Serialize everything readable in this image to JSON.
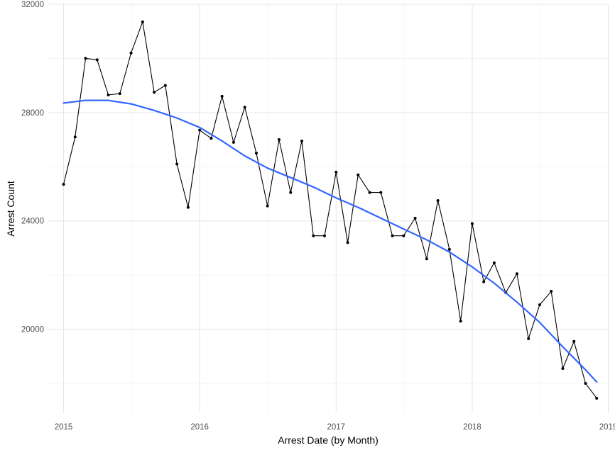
{
  "chart_data": {
    "type": "line",
    "xlabel": "Arrest Date (by Month)",
    "ylabel": "Arrest Count",
    "xlim": [
      "2014-11-21",
      "2018-12-31"
    ],
    "ylim": [
      16900,
      32000
    ],
    "x_ticks": [
      {
        "date": "2015-01-01",
        "label": "2015"
      },
      {
        "date": "2016-01-01",
        "label": "2016"
      },
      {
        "date": "2017-01-01",
        "label": "2017"
      },
      {
        "date": "2018-01-01",
        "label": "2018"
      },
      {
        "date": "2019-01-01",
        "label": "2019"
      }
    ],
    "y_ticks": [
      20000,
      24000,
      28000,
      32000
    ],
    "grid": true,
    "series": [
      {
        "kind": "observed",
        "color": "#000000",
        "x": [
          "2015-01",
          "2015-02",
          "2015-03",
          "2015-04",
          "2015-05",
          "2015-06",
          "2015-07",
          "2015-08",
          "2015-09",
          "2015-10",
          "2015-11",
          "2015-12",
          "2016-01",
          "2016-02",
          "2016-03",
          "2016-04",
          "2016-05",
          "2016-06",
          "2016-07",
          "2016-08",
          "2016-09",
          "2016-10",
          "2016-11",
          "2016-12",
          "2017-01",
          "2017-02",
          "2017-03",
          "2017-04",
          "2017-05",
          "2017-06",
          "2017-07",
          "2017-08",
          "2017-09",
          "2017-10",
          "2017-11",
          "2017-12",
          "2018-01",
          "2018-02",
          "2018-03",
          "2018-04",
          "2018-05",
          "2018-06",
          "2018-07",
          "2018-08",
          "2018-09",
          "2018-10",
          "2018-11",
          "2018-12"
        ],
        "values": [
          25350,
          27100,
          30000,
          29950,
          28650,
          28700,
          30200,
          31350,
          28750,
          29000,
          26100,
          24500,
          27350,
          27050,
          28600,
          26900,
          28200,
          26500,
          24550,
          27000,
          25050,
          26950,
          23450,
          23450,
          25800,
          23200,
          25700,
          25050,
          25050,
          23450,
          23450,
          24100,
          22600,
          24750,
          22950,
          20300,
          23900,
          21750,
          22450,
          21350,
          22050,
          19650,
          20900,
          21400,
          18550,
          19550,
          18000,
          17450
        ]
      },
      {
        "kind": "smooth",
        "color": "#3366ff",
        "x": [
          "2015-01",
          "2015-03",
          "2015-05",
          "2015-07",
          "2015-09",
          "2015-11",
          "2016-01",
          "2016-03",
          "2016-05",
          "2016-07",
          "2016-09",
          "2016-11",
          "2017-01",
          "2017-03",
          "2017-05",
          "2017-07",
          "2017-09",
          "2017-11",
          "2018-01",
          "2018-03",
          "2018-05",
          "2018-07",
          "2018-09",
          "2018-11",
          "2018-12"
        ],
        "values": [
          28350,
          28450,
          28450,
          28320,
          28080,
          27800,
          27450,
          26950,
          26400,
          25950,
          25600,
          25250,
          24850,
          24500,
          24100,
          23700,
          23300,
          22850,
          22300,
          21700,
          21000,
          20250,
          19350,
          18500,
          18050
        ]
      }
    ]
  }
}
